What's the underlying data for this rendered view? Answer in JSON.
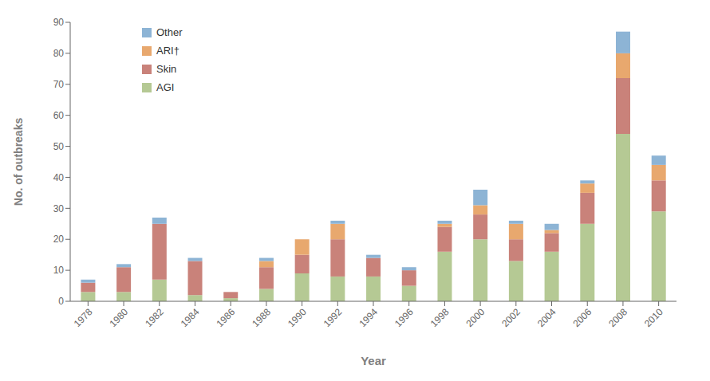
{
  "chart_data": {
    "type": "bar",
    "stacked": true,
    "categories": [
      "1978",
      "1980",
      "1982",
      "1984",
      "1986",
      "1988",
      "1990",
      "1992",
      "1994",
      "1996",
      "1998",
      "2000",
      "2002",
      "2004",
      "2006",
      "2008",
      "2010"
    ],
    "series": [
      {
        "name": "AGI",
        "color": "#b5c994",
        "values": [
          3,
          3,
          7,
          2,
          1,
          4,
          9,
          8,
          8,
          5,
          16,
          20,
          13,
          16,
          25,
          54,
          29
        ]
      },
      {
        "name": "Skin",
        "color": "#c9827a",
        "values": [
          3,
          8,
          18,
          11,
          2,
          7,
          6,
          12,
          6,
          5,
          8,
          8,
          7,
          6,
          10,
          18,
          10
        ]
      },
      {
        "name": "ARI†",
        "color": "#e8a86e",
        "values": [
          0,
          0,
          0,
          0,
          0,
          2,
          5,
          5,
          0,
          0,
          1,
          3,
          5,
          1,
          3,
          8,
          5
        ]
      },
      {
        "name": "Other",
        "color": "#8db4d5",
        "values": [
          1,
          1,
          2,
          1,
          0,
          1,
          0,
          1,
          1,
          1,
          1,
          5,
          1,
          2,
          1,
          7,
          3
        ]
      }
    ],
    "xlabel": "Year",
    "ylabel": "No. of outbreaks",
    "ylim": [
      0,
      90
    ],
    "yticks": [
      0,
      10,
      20,
      30,
      40,
      50,
      60,
      70,
      80,
      90
    ],
    "grid": false,
    "legend": "upper left"
  }
}
